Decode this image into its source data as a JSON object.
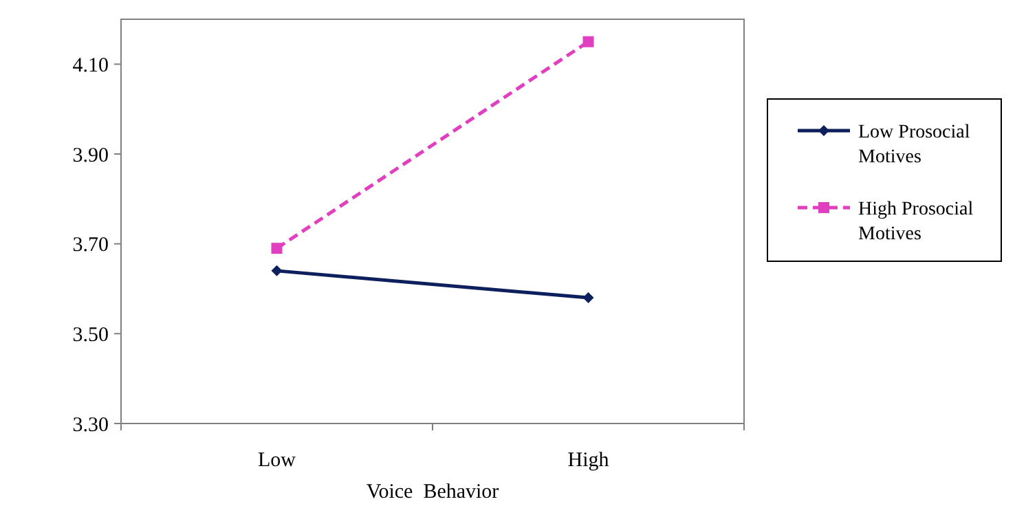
{
  "chart_data": {
    "type": "line",
    "xlabel": "Voice  Behavior",
    "categories": [
      "Low",
      "High"
    ],
    "series": [
      {
        "name": "Low Prosocial Motives",
        "color": "#0d1f5c",
        "values": [
          3.64,
          3.58
        ],
        "marker": "diamond",
        "line_style": "solid"
      },
      {
        "name": "High Prosocial Motives",
        "color": "#e040c0",
        "values": [
          3.69,
          4.15
        ],
        "marker": "square",
        "line_style": "dashed"
      }
    ],
    "ylim": [
      3.3,
      4.2
    ],
    "yticks": [
      {
        "value": 3.3,
        "label": "3.30"
      },
      {
        "value": 3.5,
        "label": "3.50"
      },
      {
        "value": 3.7,
        "label": "3.70"
      },
      {
        "value": 3.9,
        "label": "3.90"
      },
      {
        "value": 4.1,
        "label": "4.10"
      }
    ],
    "grid": false,
    "legend": "right"
  }
}
